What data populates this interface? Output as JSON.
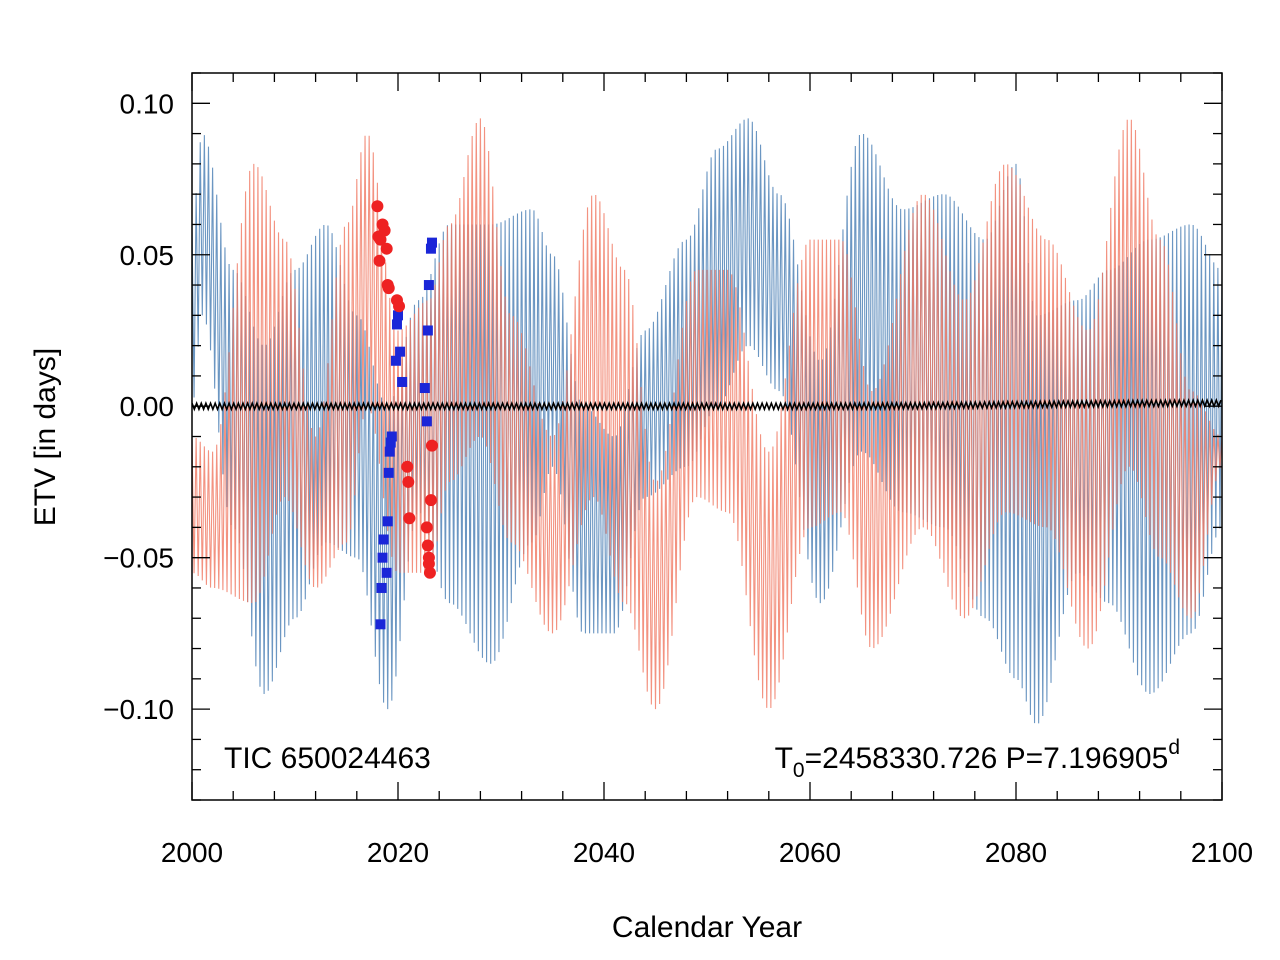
{
  "chart_data": {
    "type": "line",
    "xlabel": "Calendar Year",
    "ylabel": "ETV [in days]",
    "xlim": [
      2000,
      2100
    ],
    "ylim": [
      -0.13,
      0.11
    ],
    "x_ticks": [
      2000,
      2020,
      2040,
      2060,
      2080,
      2100
    ],
    "x_tick_labels": [
      "2000",
      "2020",
      "2040",
      "2060",
      "2080",
      "2100"
    ],
    "x_minor_step": 4,
    "y_ticks": [
      -0.1,
      -0.05,
      0.0,
      0.05,
      0.1
    ],
    "y_tick_labels": [
      "−0.10",
      "−0.05",
      "0.00",
      "0.05",
      "0.10"
    ],
    "y_minor_step": 0.01,
    "annotation_left": "TIC 650024463",
    "annotation_right": {
      "t_symbol": "T",
      "t_subscript": "0",
      "t_value": "=2458330.726 P=7.196905",
      "superscript": "d"
    },
    "model_series": [
      {
        "name": "primary eclipses model",
        "color": "#4a7fb4",
        "envelope_x": [
          2000,
          2001,
          2004,
          2007,
          2010,
          2013,
          2016,
          2019,
          2022,
          2025,
          2029,
          2033,
          2035,
          2038,
          2041,
          2044,
          2048,
          2051,
          2054,
          2057,
          2061,
          2065,
          2069,
          2073,
          2077,
          2080,
          2082,
          2086,
          2089,
          2093,
          2097,
          2100
        ],
        "envelope_upper": [
          0.06,
          0.09,
          0.045,
          0.02,
          0.045,
          0.06,
          0.03,
          0.0,
          0.035,
          0.06,
          0.06,
          0.065,
          0.05,
          0.0,
          -0.01,
          0.025,
          0.055,
          0.085,
          0.095,
          0.07,
          0.015,
          0.09,
          0.065,
          0.07,
          0.055,
          0.08,
          0.03,
          0.035,
          0.045,
          0.055,
          0.06,
          0.045
        ],
        "envelope_lower": [
          0.0,
          0.03,
          -0.04,
          -0.095,
          -0.07,
          -0.045,
          -0.05,
          -0.1,
          -0.035,
          -0.065,
          -0.085,
          -0.045,
          -0.02,
          -0.075,
          -0.075,
          -0.03,
          -0.02,
          0.0,
          0.02,
          0.005,
          -0.065,
          -0.015,
          -0.035,
          -0.04,
          -0.07,
          -0.09,
          -0.105,
          -0.055,
          -0.065,
          -0.095,
          -0.075,
          -0.04
        ]
      },
      {
        "name": "secondary eclipses model",
        "color": "#f07a64",
        "envelope_x": [
          2000,
          2002,
          2006,
          2009,
          2012,
          2015,
          2017,
          2020,
          2023,
          2025,
          2028,
          2031,
          2035,
          2039,
          2042,
          2045,
          2049,
          2052,
          2056,
          2060,
          2063,
          2066,
          2071,
          2075,
          2079,
          2083,
          2087,
          2091,
          2094,
          2097,
          2100
        ],
        "envelope_upper": [
          -0.01,
          -0.015,
          0.08,
          0.055,
          -0.01,
          0.06,
          0.09,
          0.025,
          0.035,
          0.06,
          0.095,
          0.03,
          -0.01,
          0.07,
          0.045,
          -0.025,
          0.045,
          0.045,
          -0.015,
          0.055,
          0.055,
          0.005,
          0.07,
          0.035,
          0.08,
          0.055,
          0.025,
          0.095,
          0.055,
          0.005,
          -0.01
        ],
        "envelope_lower": [
          -0.055,
          -0.06,
          -0.065,
          -0.03,
          -0.06,
          -0.045,
          0.0,
          -0.055,
          -0.055,
          -0.025,
          -0.01,
          -0.045,
          -0.075,
          -0.03,
          -0.065,
          -0.1,
          -0.03,
          -0.035,
          -0.1,
          -0.04,
          -0.035,
          -0.08,
          -0.04,
          -0.07,
          -0.035,
          -0.04,
          -0.08,
          -0.02,
          -0.05,
          -0.07,
          -0.02
        ]
      },
      {
        "name": "light-travel-time model",
        "color": "#000000",
        "envelope_x": [
          2000,
          2030,
          2060,
          2100
        ],
        "envelope_upper": [
          0.001,
          0.001,
          0.001,
          0.002
        ],
        "envelope_lower": [
          -0.001,
          -0.001,
          -0.001,
          0.0
        ]
      }
    ],
    "observations": [
      {
        "name": "primary ETVs",
        "marker": "square",
        "color": "#1a26d8",
        "points": [
          [
            2018.3,
            -0.072
          ],
          [
            2018.4,
            -0.06
          ],
          [
            2018.5,
            -0.05
          ],
          [
            2018.6,
            -0.044
          ],
          [
            2018.9,
            -0.055
          ],
          [
            2019.0,
            -0.038
          ],
          [
            2019.1,
            -0.022
          ],
          [
            2019.2,
            -0.015
          ],
          [
            2019.3,
            -0.012
          ],
          [
            2019.4,
            -0.01
          ],
          [
            2019.8,
            0.015
          ],
          [
            2019.9,
            0.027
          ],
          [
            2020.0,
            0.03
          ],
          [
            2020.2,
            0.018
          ],
          [
            2020.4,
            0.008
          ],
          [
            2022.6,
            0.006
          ],
          [
            2022.8,
            -0.005
          ],
          [
            2022.9,
            0.025
          ],
          [
            2023.0,
            0.04
          ],
          [
            2023.2,
            0.052
          ],
          [
            2023.3,
            0.054
          ]
        ]
      },
      {
        "name": "secondary ETVs",
        "marker": "circle",
        "color": "#ee2222",
        "points": [
          [
            2018.0,
            0.066
          ],
          [
            2018.1,
            0.056
          ],
          [
            2018.2,
            0.048
          ],
          [
            2018.3,
            0.055
          ],
          [
            2018.5,
            0.06
          ],
          [
            2018.7,
            0.058
          ],
          [
            2018.9,
            0.052
          ],
          [
            2019.0,
            0.04
          ],
          [
            2019.1,
            0.039
          ],
          [
            2019.9,
            0.035
          ],
          [
            2020.1,
            0.033
          ],
          [
            2020.9,
            -0.02
          ],
          [
            2021.0,
            -0.025
          ],
          [
            2021.1,
            -0.037
          ],
          [
            2022.8,
            -0.04
          ],
          [
            2022.9,
            -0.046
          ],
          [
            2023.0,
            -0.052
          ],
          [
            2023.1,
            -0.055
          ],
          [
            2023.2,
            -0.031
          ],
          [
            2023.3,
            -0.013
          ],
          [
            2023.0,
            -0.05
          ]
        ]
      }
    ]
  }
}
